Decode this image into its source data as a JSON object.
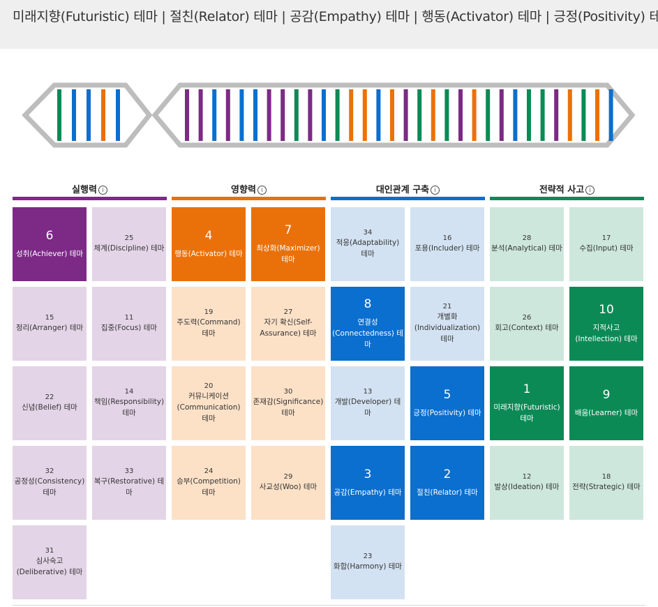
{
  "header": {
    "title": "미래지향(Futuristic) 테마 | 절친(Relator) 테마 | 공감(Empathy) 테마 | 행동(Activator) 테마 | 긍정(Positivity) 테마"
  },
  "colors": {
    "executing": "#7c2a86",
    "executing_light": "#e4d4e7",
    "influencing": "#ea7109",
    "influencing_light": "#fce1c7",
    "relationship": "#0a6fce",
    "relationship_light": "#d3e2f2",
    "strategic": "#0c8a55",
    "strategic_light": "#cde7dd",
    "dna_gray": "#bdbdbd"
  },
  "dna_strip": {
    "short": [
      "strategic",
      "relationship",
      "relationship",
      "influencing",
      "relationship"
    ],
    "long": [
      "executing",
      "executing",
      "relationship",
      "executing",
      "relationship",
      "relationship",
      "executing",
      "executing",
      "strategic",
      "executing",
      "relationship",
      "strategic",
      "influencing",
      "influencing",
      "relationship",
      "influencing",
      "executing",
      "strategic",
      "influencing",
      "strategic",
      "executing",
      "influencing",
      "strategic",
      "executing",
      "relationship",
      "strategic",
      "strategic",
      "executing",
      "influencing",
      "strategic",
      "influencing",
      "relationship"
    ]
  },
  "categories": [
    {
      "key": "executing",
      "title": "실행력",
      "info": "i",
      "themes": [
        {
          "rank": "6",
          "name": "성취(Achiever) 테마",
          "top": true
        },
        {
          "rank": "25",
          "name": "체계(Discipline) 테마",
          "top": false
        },
        {
          "rank": "15",
          "name": "정리(Arranger) 테마",
          "top": false
        },
        {
          "rank": "11",
          "name": "집중(Focus) 테마",
          "top": false
        },
        {
          "rank": "22",
          "name": "신념(Belief) 테마",
          "top": false
        },
        {
          "rank": "14",
          "name": "책임(Responsibility) 테마",
          "top": false
        },
        {
          "rank": "32",
          "name": "공정성(Consistency) 테마",
          "top": false
        },
        {
          "rank": "33",
          "name": "복구(Restorative) 테마",
          "top": false
        },
        {
          "rank": "31",
          "name": "심사숙고 (Deliberative) 테마",
          "top": false
        }
      ]
    },
    {
      "key": "influencing",
      "title": "영향력",
      "info": "i",
      "themes": [
        {
          "rank": "4",
          "name": "행동(Activator) 테마",
          "top": true
        },
        {
          "rank": "7",
          "name": "최상화(Maximizer) 테마",
          "top": true
        },
        {
          "rank": "19",
          "name": "주도력(Command) 테마",
          "top": false
        },
        {
          "rank": "27",
          "name": "자기 확신(Self-Assurance) 테마",
          "top": false
        },
        {
          "rank": "20",
          "name": "커뮤니케이션 (Communication) 테마",
          "top": false
        },
        {
          "rank": "30",
          "name": "존재감(Significance) 테마",
          "top": false
        },
        {
          "rank": "24",
          "name": "승부(Competition) 테마",
          "top": false
        },
        {
          "rank": "29",
          "name": "사교성(Woo) 테마",
          "top": false
        }
      ]
    },
    {
      "key": "relationship",
      "title": "대인관계 구축",
      "info": "i",
      "themes": [
        {
          "rank": "34",
          "name": "적응(Adaptability) 테마",
          "top": false
        },
        {
          "rank": "16",
          "name": "포용(Includer) 테마",
          "top": false
        },
        {
          "rank": "8",
          "name": "연결성 (Connectedness) 테마",
          "top": true
        },
        {
          "rank": "21",
          "name": "개별화 (Individualization) 테마",
          "top": false
        },
        {
          "rank": "13",
          "name": "개발(Developer) 테마",
          "top": false
        },
        {
          "rank": "5",
          "name": "긍정(Positivity) 테마",
          "top": true
        },
        {
          "rank": "3",
          "name": "공감(Empathy) 테마",
          "top": true
        },
        {
          "rank": "2",
          "name": "절친(Relator) 테마",
          "top": true
        },
        {
          "rank": "23",
          "name": "화합(Harmony) 테마",
          "top": false
        }
      ]
    },
    {
      "key": "strategic",
      "title": "전략적 사고",
      "info": "i",
      "themes": [
        {
          "rank": "28",
          "name": "분석(Analytical) 테마",
          "top": false
        },
        {
          "rank": "17",
          "name": "수집(Input) 테마",
          "top": false
        },
        {
          "rank": "26",
          "name": "회고(Context) 테마",
          "top": false
        },
        {
          "rank": "10",
          "name": "지적사고(Intellection) 테마",
          "top": true
        },
        {
          "rank": "1",
          "name": "미래지향(Futuristic) 테마",
          "top": true
        },
        {
          "rank": "9",
          "name": "배움(Learner) 테마",
          "top": true
        },
        {
          "rank": "12",
          "name": "발상(Ideation) 테마",
          "top": false
        },
        {
          "rank": "18",
          "name": "전략(Strategic) 테마",
          "top": false
        }
      ]
    }
  ]
}
